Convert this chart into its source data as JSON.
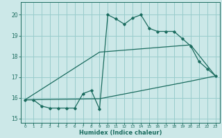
{
  "xlabel": "Humidex (Indice chaleur)",
  "bg_color": "#cce8e8",
  "grid_color": "#99cccc",
  "line_color": "#1a6b5e",
  "xlim": [
    -0.5,
    23.5
  ],
  "ylim": [
    14.8,
    20.6
  ],
  "yticks": [
    15,
    16,
    17,
    18,
    19,
    20
  ],
  "xticks": [
    0,
    1,
    2,
    3,
    4,
    5,
    6,
    7,
    8,
    9,
    10,
    11,
    12,
    13,
    14,
    15,
    16,
    17,
    18,
    19,
    20,
    21,
    22,
    23
  ],
  "line1_x": [
    0,
    1,
    2,
    3,
    4,
    5,
    6,
    7,
    8,
    9,
    10,
    11,
    12,
    13,
    14,
    15,
    16,
    17,
    18,
    19,
    20,
    21,
    22,
    23
  ],
  "line1_y": [
    15.9,
    15.9,
    15.6,
    15.5,
    15.5,
    15.5,
    15.5,
    16.2,
    16.35,
    15.45,
    20.0,
    19.8,
    19.55,
    19.85,
    20.0,
    19.35,
    19.2,
    19.2,
    19.2,
    18.85,
    18.5,
    17.75,
    17.4,
    17.05
  ],
  "line2_x": [
    0,
    9,
    20,
    23
  ],
  "line2_y": [
    15.9,
    18.2,
    18.55,
    17.05
  ],
  "line3_x": [
    0,
    9,
    20,
    23
  ],
  "line3_y": [
    15.9,
    15.95,
    16.8,
    17.05
  ]
}
